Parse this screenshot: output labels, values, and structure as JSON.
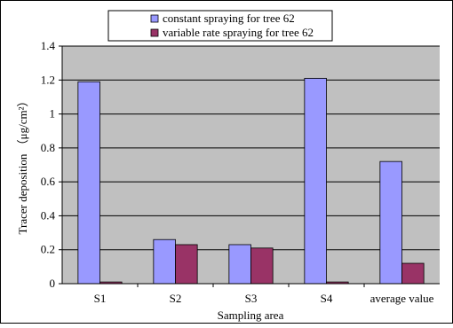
{
  "chart_data": {
    "type": "bar",
    "title": "",
    "xlabel": "Sampling area",
    "ylabel": "Tracer deposition （μg/cm²）",
    "categories": [
      "S1",
      "S2",
      "S3",
      "S4",
      "average value"
    ],
    "ylim": [
      0,
      1.4
    ],
    "yticks": [
      "0",
      "0.2",
      "0.4",
      "0.6",
      "0.8",
      "1",
      "1.2",
      "1.4"
    ],
    "grid": true,
    "legend_position": "top",
    "series": [
      {
        "name": "constant spraying for tree 62",
        "color": "#9999ff",
        "values": [
          1.19,
          0.26,
          0.23,
          1.21,
          0.72
        ]
      },
      {
        "name": "variable rate spraying for tree 62",
        "color": "#993366",
        "values": [
          0.01,
          0.23,
          0.21,
          0.01,
          0.12
        ]
      }
    ],
    "plot_background": "#c0c0c0"
  }
}
